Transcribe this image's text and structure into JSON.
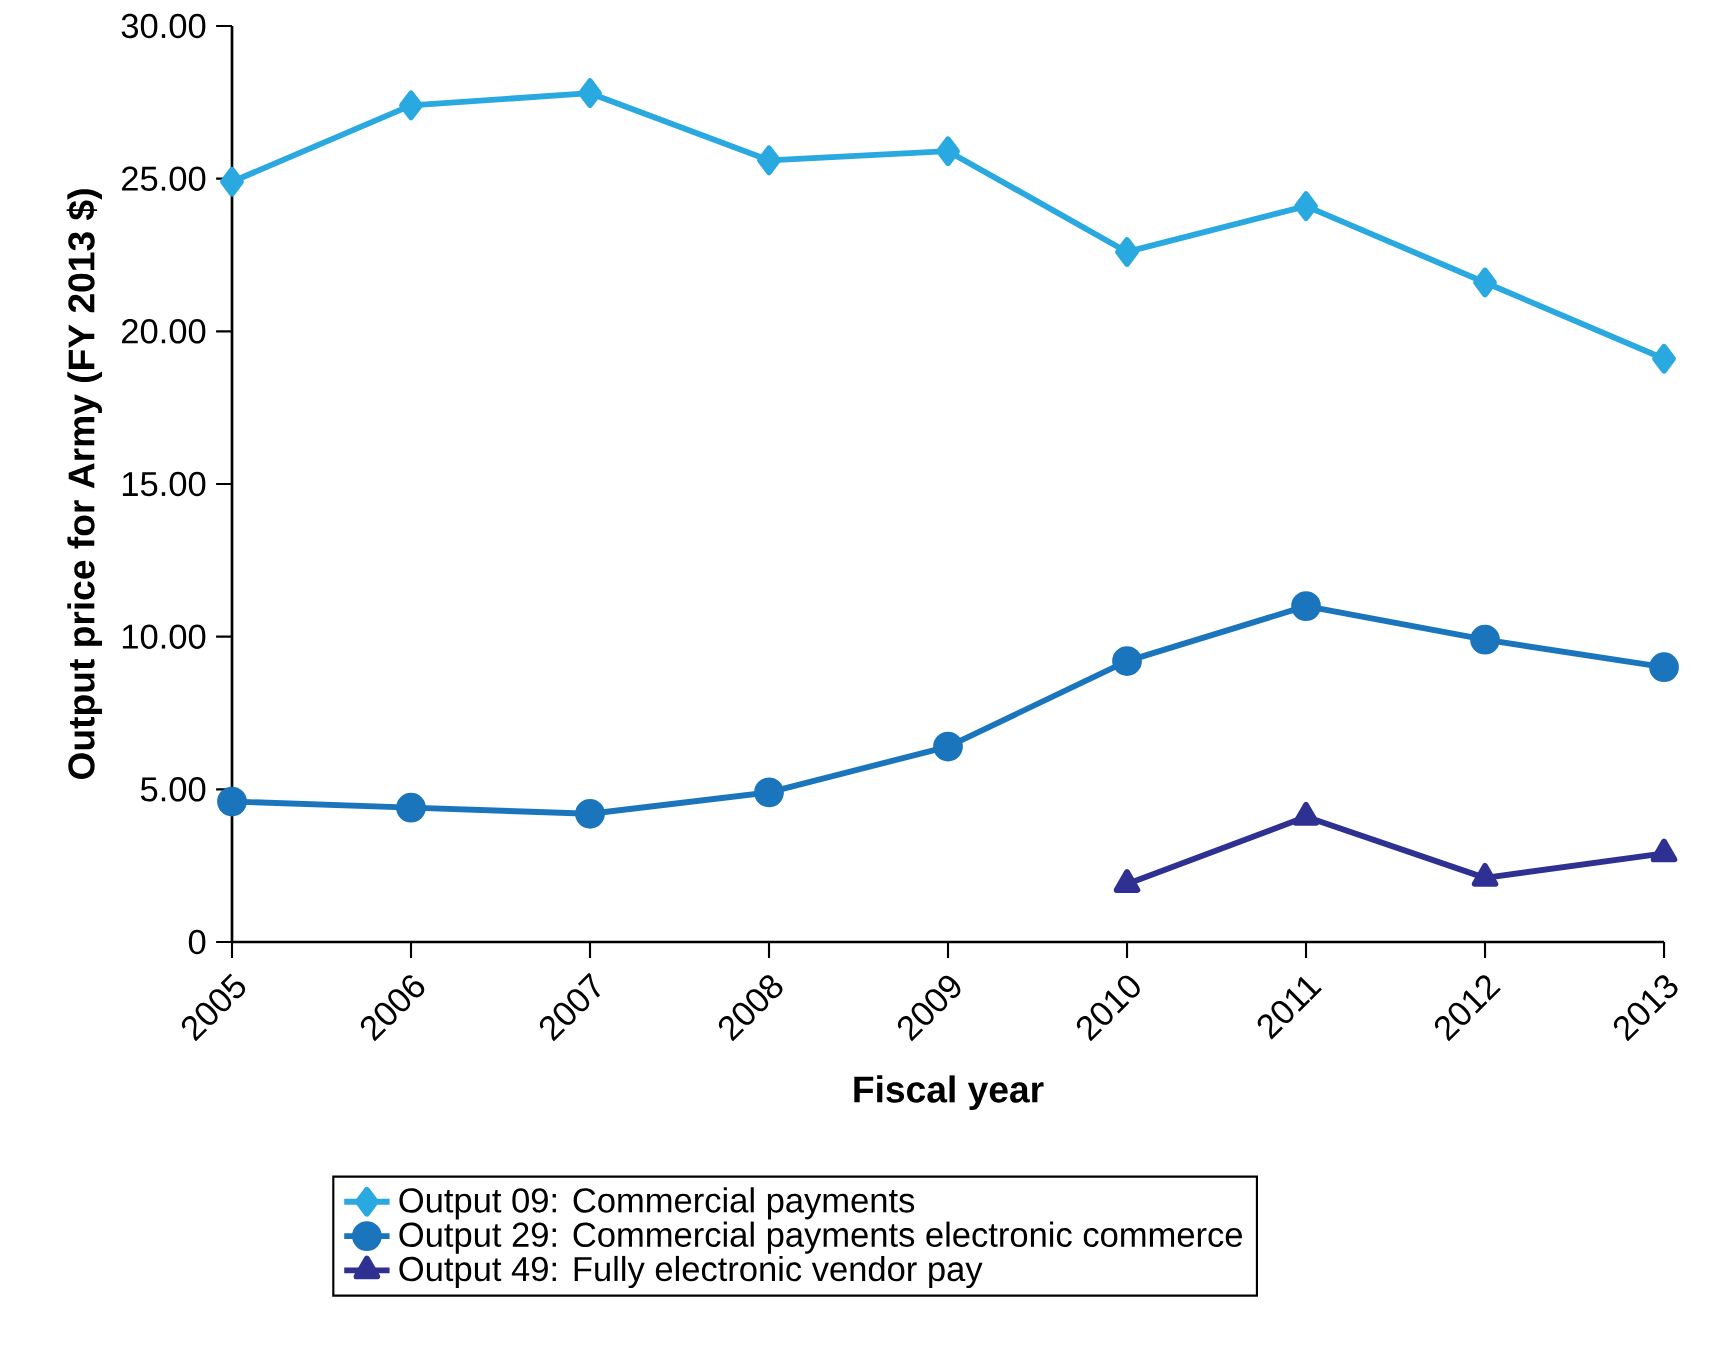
{
  "chart_data": {
    "type": "line",
    "xlabel": "Fiscal year",
    "ylabel": "Output price for Army (FY 2013 $)",
    "x": [
      2005,
      2006,
      2007,
      2008,
      2009,
      2010,
      2011,
      2012,
      2013
    ],
    "series": [
      {
        "name": "Output 09: Commercial payments",
        "color": "#29a9e0",
        "marker": "diamond",
        "values": [
          24.9,
          27.4,
          27.8,
          25.6,
          25.9,
          22.6,
          24.1,
          21.6,
          19.1
        ]
      },
      {
        "name": "Output 29: Commercial payments electronic commerce",
        "color": "#1a75bc",
        "marker": "circle",
        "values": [
          4.6,
          4.4,
          4.2,
          4.9,
          6.4,
          9.2,
          11.0,
          9.9,
          9.0
        ]
      },
      {
        "name": "Output 49: Fully electronic vendor pay",
        "color": "#2e3192",
        "marker": "triangle",
        "values": [
          null,
          null,
          null,
          null,
          null,
          1.9,
          4.1,
          2.1,
          2.9
        ]
      }
    ],
    "xlim": [
      2005,
      2013
    ],
    "ylim": [
      0,
      30
    ],
    "xticks": [
      2005,
      2006,
      2007,
      2008,
      2009,
      2010,
      2011,
      2012,
      2013
    ],
    "yticks": [
      0,
      {
        "value": 5,
        "label": "5.00"
      },
      {
        "value": 10,
        "label": "10.00"
      },
      {
        "value": 15,
        "label": "15.00"
      },
      {
        "value": 20,
        "label": "20.00"
      },
      {
        "value": 25,
        "label": "25.00"
      },
      {
        "value": 30,
        "label": "30.00"
      }
    ],
    "grid": false,
    "legend": "bottom",
    "line_style": "solid"
  }
}
